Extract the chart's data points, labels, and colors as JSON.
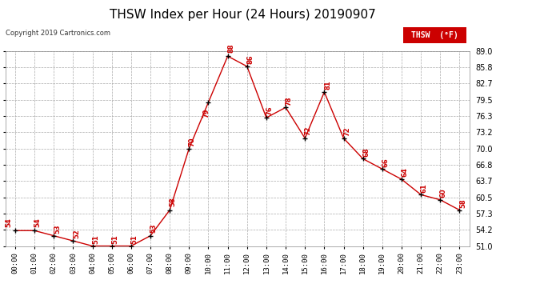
{
  "title": "THSW Index per Hour (24 Hours) 20190907",
  "copyright": "Copyright 2019 Cartronics.com",
  "legend_label": "THSW  (°F)",
  "hours": [
    0,
    1,
    2,
    3,
    4,
    5,
    6,
    7,
    8,
    9,
    10,
    11,
    12,
    13,
    14,
    15,
    16,
    17,
    18,
    19,
    20,
    21,
    22,
    23
  ],
  "values": [
    54,
    54,
    53,
    52,
    51,
    51,
    51,
    53,
    58,
    70,
    79,
    88,
    86,
    76,
    78,
    72,
    81,
    72,
    68,
    66,
    64,
    61,
    60,
    58
  ],
  "ylim": [
    51.0,
    89.0
  ],
  "yticks": [
    51.0,
    54.2,
    57.3,
    60.5,
    63.7,
    66.8,
    70.0,
    73.2,
    76.3,
    79.5,
    82.7,
    85.8,
    89.0
  ],
  "line_color": "#cc0000",
  "marker_color": "#000000",
  "label_color": "#cc0000",
  "title_fontsize": 11,
  "legend_bg": "#cc0000",
  "legend_text_color": "#ffffff",
  "bg_color": "#ffffff",
  "grid_color": "#aaaaaa"
}
